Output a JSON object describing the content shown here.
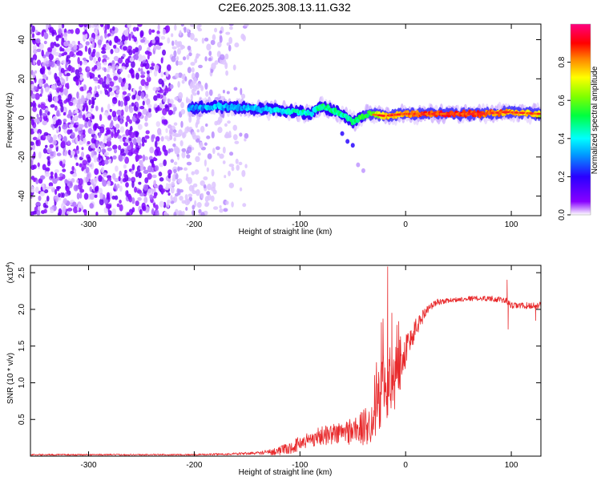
{
  "figure_title": "C2E6.2025.308.13.11.G32",
  "chart_data": [
    {
      "type": "heatmap",
      "title": "C2E6.2025.308.13.11.G32",
      "xlabel": "Height of straight line (km)",
      "ylabel": "Frequency (Hz)",
      "xlim": [
        -355,
        128
      ],
      "ylim": [
        -50,
        48
      ],
      "xticks": [
        -300,
        -200,
        -100,
        0,
        100
      ],
      "xtick_labels": [
        "-300",
        "-200",
        "-100",
        "0",
        "100"
      ],
      "yticks": [
        -40,
        -20,
        0,
        20,
        40
      ],
      "ytick_labels": [
        "-40",
        "-20",
        "0",
        "20",
        "40"
      ],
      "colorbar": {
        "label": "Normalized spectral amplitude",
        "range": [
          0,
          1
        ],
        "ticks": [
          0.0,
          0.2,
          0.4,
          0.6,
          0.8
        ],
        "tick_labels": [
          "0.0",
          "0.2",
          "0.4",
          "0.6",
          "0.8"
        ]
      },
      "features": {
        "noise_region_km": [
          -355,
          -150
        ],
        "noise_amplitude": 0.1,
        "ridge": [
          {
            "x": -200,
            "f": 5,
            "amp": 0.3
          },
          {
            "x": -180,
            "f": 6,
            "amp": 0.35
          },
          {
            "x": -150,
            "f": 5,
            "amp": 0.32
          },
          {
            "x": -120,
            "f": 4,
            "amp": 0.38
          },
          {
            "x": -100,
            "f": 3,
            "amp": 0.45
          },
          {
            "x": -90,
            "f": 2,
            "amp": 0.4
          },
          {
            "x": -80,
            "f": 6,
            "amp": 0.5
          },
          {
            "x": -65,
            "f": 3,
            "amp": 0.45
          },
          {
            "x": -50,
            "f": -2,
            "amp": 0.48
          },
          {
            "x": -35,
            "f": 2,
            "amp": 0.55
          },
          {
            "x": -20,
            "f": 1,
            "amp": 0.75
          },
          {
            "x": 0,
            "f": 2,
            "amp": 0.8
          },
          {
            "x": 40,
            "f": 2,
            "amp": 0.9
          },
          {
            "x": 70,
            "f": 2,
            "amp": 0.85
          },
          {
            "x": 95,
            "f": 3,
            "amp": 0.8
          },
          {
            "x": 128,
            "f": 2,
            "amp": 0.7
          }
        ]
      }
    },
    {
      "type": "line",
      "xlabel": "Height of straight line (km)",
      "ylabel": "SNR (10 * v/v)",
      "y_multiplier": "(x10",
      "y_multiplier_exp": "4",
      "xlim": [
        -355,
        128
      ],
      "ylim": [
        0,
        2.6
      ],
      "xticks": [
        -300,
        -200,
        -100,
        0,
        100
      ],
      "xtick_labels": [
        "-300",
        "-200",
        "-100",
        "0",
        "100"
      ],
      "yticks": [
        0.5,
        1.0,
        1.5,
        2.0,
        2.5
      ],
      "ytick_labels": [
        "0.5",
        "1.0",
        "1.5",
        "2.0",
        "2.5"
      ],
      "series": [
        {
          "name": "SNR",
          "color": "#e8292b",
          "trend_x": [
            -355,
            -200,
            -160,
            -130,
            -110,
            -100,
            -80,
            -60,
            -40,
            -30,
            -25,
            -20,
            -15,
            -10,
            -5,
            0,
            10,
            20,
            30,
            40,
            60,
            80,
            95,
            100,
            110,
            128
          ],
          "trend_y": [
            0.02,
            0.02,
            0.03,
            0.05,
            0.1,
            0.18,
            0.28,
            0.32,
            0.38,
            0.5,
            0.8,
            0.9,
            1.0,
            1.2,
            1.3,
            1.45,
            1.75,
            2.0,
            2.1,
            2.12,
            2.15,
            2.15,
            2.12,
            2.05,
            2.05,
            2.05
          ],
          "noise_x": [
            -355,
            -200,
            -140,
            -100,
            -60,
            -30,
            -20,
            -10,
            0,
            10,
            20,
            40,
            90,
            128
          ],
          "noise_a": [
            0.01,
            0.01,
            0.02,
            0.1,
            0.16,
            0.3,
            0.55,
            0.55,
            0.25,
            0.15,
            0.06,
            0.03,
            0.04,
            0.05
          ],
          "spikes": [
            {
              "x": -23,
              "y": 1.82
            },
            {
              "x": -17,
              "y": 2.58
            },
            {
              "x": -13,
              "y": 1.95
            },
            {
              "x": 96,
              "y": 2.4
            },
            {
              "x": 97,
              "y": 1.73
            },
            {
              "x": 123,
              "y": 1.85
            }
          ]
        }
      ]
    }
  ]
}
